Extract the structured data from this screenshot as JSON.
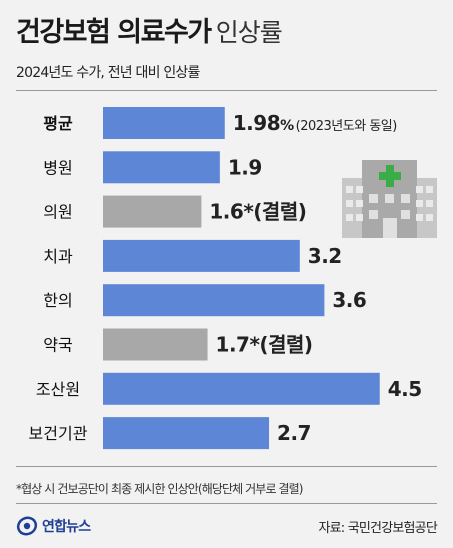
{
  "header": {
    "title_bold": "건강보험 의료수가",
    "title_light": "인상률",
    "subtitle": "2024년도 수가, 전년 대비 인상률"
  },
  "colors": {
    "blue": "#5d87d6",
    "gray": "#a8a8a8"
  },
  "chart_data": {
    "type": "bar",
    "orientation": "horizontal",
    "categories": [
      "평균",
      "병원",
      "의원",
      "치과",
      "한의",
      "약국",
      "조산원",
      "보건기관"
    ],
    "values": [
      1.98,
      1.9,
      1.6,
      3.2,
      3.6,
      1.7,
      4.5,
      2.7
    ],
    "labels": [
      "1.98",
      "1.9",
      "1.6*(결렬)",
      "3.2",
      "3.6",
      "1.7*(결렬)",
      "4.5",
      "2.7"
    ],
    "label_suffixes": [
      "%",
      "",
      "",
      "",
      "",
      "",
      "",
      ""
    ],
    "label_notes": [
      "(2023년도와 동일)",
      "",
      "",
      "",
      "",
      "",
      "",
      ""
    ],
    "bar_colors": [
      "blue",
      "blue",
      "gray",
      "blue",
      "blue",
      "gray",
      "blue",
      "blue"
    ],
    "bold_categories": [
      "평균"
    ]
  },
  "footer": {
    "note": "*협상 시 건보공단이 최종 제시한 인상안(해당단체 거부로 결렬)",
    "logo_text": "연합뉴스",
    "source": "자료: 국민건강보험공단"
  },
  "icons": {
    "illustration": "hospital-icon",
    "logo": "yonhap-logo-icon"
  }
}
